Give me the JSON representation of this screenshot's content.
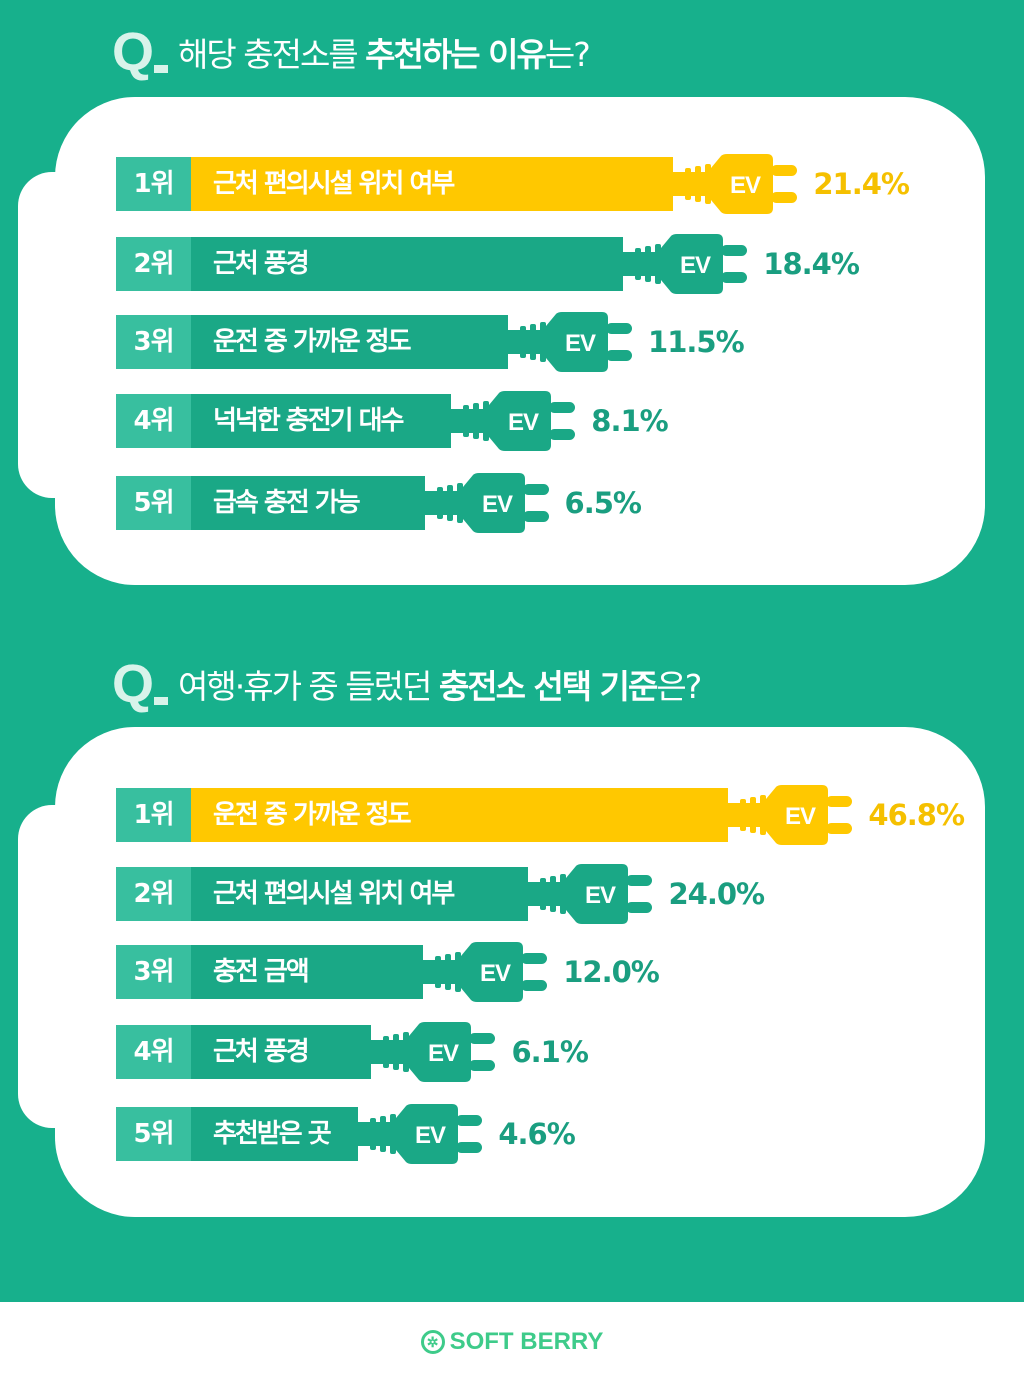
{
  "colors": {
    "background": "#17b08c",
    "bar": "#1aa886",
    "rank_box": "#38bf9f",
    "highlight": "#ffc800",
    "pct_green": "#1a9e80",
    "pct_yellow": "#f5c000",
    "logo": "#3ecb8a"
  },
  "sections": [
    {
      "q_mark": "Q",
      "title_light": "해당 충전소를",
      "title_bold": "추천하는 이유",
      "title_end": "는?"
    },
    {
      "q_mark": "Q",
      "title_light": "여행·휴가 중 들렀던",
      "title_bold": "충전소 선택 기준",
      "title_end": "은?"
    }
  ],
  "plug_text": "EV",
  "chart_data": [
    {
      "type": "bar",
      "orientation": "horizontal",
      "title": "해당 충전소를 추천하는 이유는?",
      "unit": "%",
      "categories": [
        "근처 편의시설 위치 여부",
        "근처 풍경",
        "운전 중 가까운 정도",
        "넉넉한 충전기 대수",
        "급속 충전 가능"
      ],
      "ranks": [
        "1위",
        "2위",
        "3위",
        "4위",
        "5위"
      ],
      "values": [
        21.4,
        18.4,
        11.5,
        8.1,
        6.5
      ],
      "labels": [
        "21.4%",
        "18.4%",
        "11.5%",
        "8.1%",
        "6.5%"
      ],
      "highlight_index": 0
    },
    {
      "type": "bar",
      "orientation": "horizontal",
      "title": "여행·휴가 중 들렀던 충전소 선택 기준은?",
      "unit": "%",
      "categories": [
        "운전 중 가까운 정도",
        "근처 편의시설 위치 여부",
        "충전 금액",
        "근처 풍경",
        "추천받은 곳"
      ],
      "ranks": [
        "1위",
        "2위",
        "3위",
        "4위",
        "5위"
      ],
      "values": [
        46.8,
        24.0,
        12.0,
        6.1,
        4.6
      ],
      "labels": [
        "46.8%",
        "24.0%",
        "12.0%",
        "6.1%",
        "4.6%"
      ],
      "highlight_index": 0
    }
  ],
  "footer": {
    "logo_icon": "berry-icon",
    "logo_text": "SOFT BERRY"
  }
}
